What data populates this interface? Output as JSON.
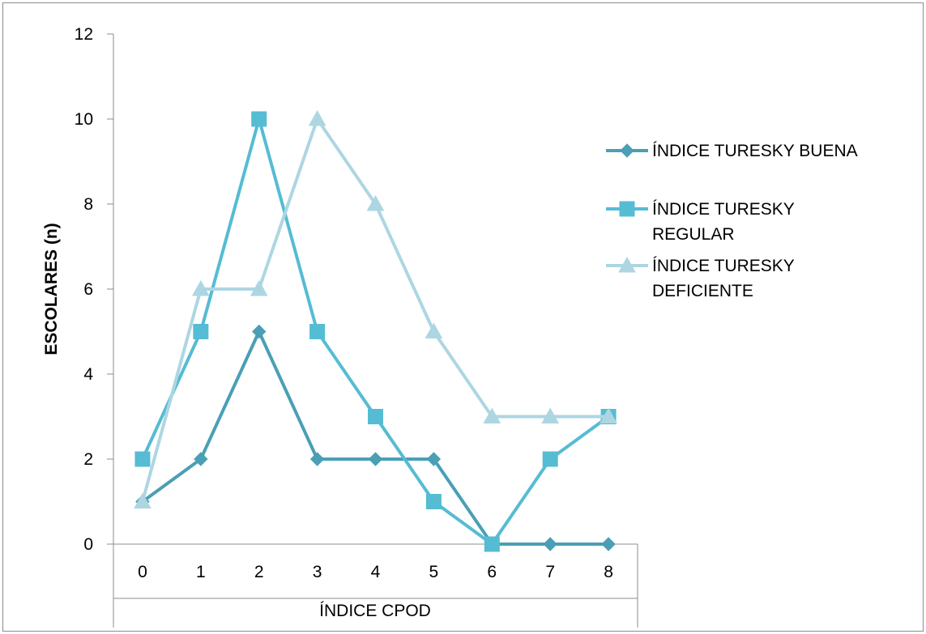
{
  "chart_data": {
    "type": "line",
    "categories": [
      "0",
      "1",
      "2",
      "3",
      "4",
      "5",
      "6",
      "7",
      "8"
    ],
    "x": [
      0,
      1,
      2,
      3,
      4,
      5,
      6,
      7,
      8
    ],
    "ylabel": "ESCOLARES (n)",
    "xlabel": "ÍNDICE CPOD",
    "ylim": [
      0,
      12
    ],
    "yticks": [
      "0",
      "2",
      "4",
      "6",
      "8",
      "10",
      "12"
    ],
    "grid": false,
    "legend_position": "right",
    "series": [
      {
        "name": "ÍNDICE TURESKY BUENA",
        "name_lines": [
          "ÍNDICE TURESKY BUENA"
        ],
        "values": [
          1,
          2,
          5,
          2,
          2,
          2,
          0,
          0,
          0
        ],
        "color": "#4a9fb5",
        "marker": "diamond"
      },
      {
        "name": "ÍNDICE TURESKY REGULAR",
        "name_lines": [
          "ÍNDICE TURESKY",
          "REGULAR"
        ],
        "values": [
          2,
          5,
          10,
          5,
          3,
          1,
          0,
          2,
          3
        ],
        "color": "#55bcd3",
        "marker": "square"
      },
      {
        "name": "ÍNDICE TURESKY DEFICIENTE",
        "name_lines": [
          "ÍNDICE TURESKY",
          "DEFICIENTE"
        ],
        "values": [
          1,
          6,
          6,
          10,
          8,
          5,
          3,
          3,
          3
        ],
        "color": "#add6e2",
        "marker": "triangle"
      }
    ]
  }
}
